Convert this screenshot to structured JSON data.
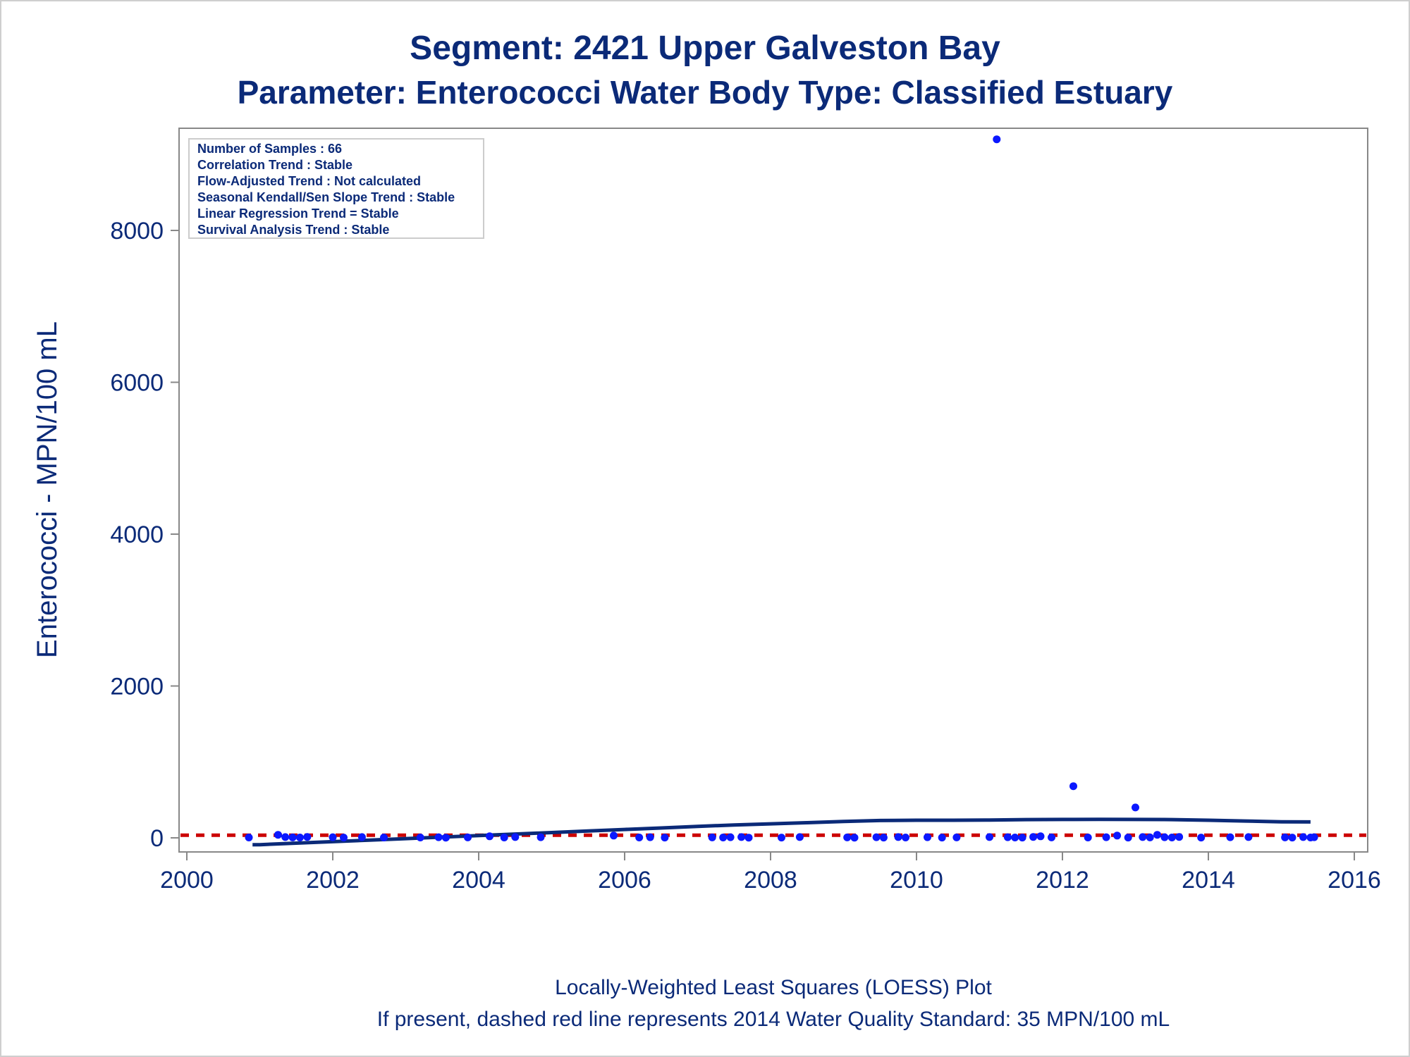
{
  "chart_data": {
    "type": "scatter",
    "title_line1": "Segment: 2421  Upper Galveston Bay",
    "title_line2": "Parameter: Enterococci   Water Body Type: Classified Estuary",
    "xlabel": "",
    "ylabel": "Enterococci - MPN/100 mL",
    "xlim": [
      2000,
      2016
    ],
    "ylim": [
      -200,
      9300
    ],
    "x_ticks": [
      "2000",
      "2002",
      "2004",
      "2006",
      "2008",
      "2010",
      "2012",
      "2014",
      "2016"
    ],
    "y_ticks": [
      "0",
      "2000",
      "4000",
      "6000",
      "8000"
    ],
    "stats_box": [
      "Number of Samples : 66",
      "Correlation Trend : Stable",
      "Flow-Adjusted Trend : Not calculated",
      "Seasonal Kendall/Sen Slope Trend : Stable",
      "Linear Regression Trend = Stable",
      "Survival Analysis Trend : Stable"
    ],
    "standard_value": 35,
    "points": [
      [
        2000.85,
        5
      ],
      [
        2001.25,
        40
      ],
      [
        2001.35,
        10
      ],
      [
        2001.55,
        5
      ],
      [
        2001.65,
        12
      ],
      [
        2002.0,
        8
      ],
      [
        2002.15,
        4
      ],
      [
        2002.4,
        10
      ],
      [
        2003.2,
        5
      ],
      [
        2003.45,
        8
      ],
      [
        2003.55,
        3
      ],
      [
        2003.85,
        6
      ],
      [
        2004.15,
        20
      ],
      [
        2004.35,
        5
      ],
      [
        2004.5,
        10
      ],
      [
        2004.85,
        8
      ],
      [
        2005.85,
        30
      ],
      [
        2006.2,
        5
      ],
      [
        2006.35,
        8
      ],
      [
        2006.55,
        4
      ],
      [
        2007.2,
        6
      ],
      [
        2007.35,
        5
      ],
      [
        2007.45,
        8
      ],
      [
        2007.6,
        10
      ],
      [
        2007.7,
        3
      ],
      [
        2008.15,
        4
      ],
      [
        2008.4,
        10
      ],
      [
        2009.05,
        6
      ],
      [
        2009.15,
        3
      ],
      [
        2009.45,
        8
      ],
      [
        2009.55,
        4
      ],
      [
        2009.75,
        10
      ],
      [
        2009.85,
        5
      ],
      [
        2010.15,
        8
      ],
      [
        2010.35,
        4
      ],
      [
        2010.55,
        6
      ],
      [
        2011.0,
        10
      ],
      [
        2011.1,
        9200
      ],
      [
        2011.25,
        8
      ],
      [
        2011.35,
        5
      ],
      [
        2011.45,
        4
      ],
      [
        2011.6,
        12
      ],
      [
        2011.7,
        20
      ],
      [
        2011.85,
        6
      ],
      [
        2012.15,
        680
      ],
      [
        2012.35,
        5
      ],
      [
        2012.6,
        8
      ],
      [
        2012.75,
        30
      ],
      [
        2012.9,
        4
      ],
      [
        2013.0,
        400
      ],
      [
        2013.1,
        10
      ],
      [
        2013.2,
        6
      ],
      [
        2013.3,
        40
      ],
      [
        2013.4,
        8
      ],
      [
        2013.5,
        5
      ],
      [
        2013.6,
        12
      ],
      [
        2013.9,
        4
      ],
      [
        2014.3,
        8
      ],
      [
        2014.55,
        10
      ],
      [
        2015.05,
        6
      ],
      [
        2015.15,
        4
      ],
      [
        2015.3,
        10
      ],
      [
        2015.4,
        5
      ],
      [
        2015.45,
        8
      ],
      [
        2002.7,
        5
      ],
      [
        2001.45,
        6
      ]
    ],
    "loess": [
      [
        2000.9,
        -90
      ],
      [
        2001.0,
        -90
      ],
      [
        2001.5,
        -70
      ],
      [
        2002.0,
        -50
      ],
      [
        2002.5,
        -30
      ],
      [
        2003.0,
        -10
      ],
      [
        2003.5,
        10
      ],
      [
        2004.0,
        30
      ],
      [
        2004.5,
        50
      ],
      [
        2005.0,
        70
      ],
      [
        2005.5,
        90
      ],
      [
        2006.0,
        110
      ],
      [
        2006.5,
        130
      ],
      [
        2007.0,
        150
      ],
      [
        2007.5,
        170
      ],
      [
        2008.0,
        185
      ],
      [
        2008.5,
        200
      ],
      [
        2009.0,
        215
      ],
      [
        2009.5,
        228
      ],
      [
        2010.0,
        232
      ],
      [
        2010.5,
        232
      ],
      [
        2011.0,
        235
      ],
      [
        2011.5,
        240
      ],
      [
        2012.0,
        242
      ],
      [
        2012.5,
        243
      ],
      [
        2013.0,
        242
      ],
      [
        2013.5,
        240
      ],
      [
        2014.0,
        232
      ],
      [
        2014.5,
        222
      ],
      [
        2015.0,
        212
      ],
      [
        2015.4,
        210
      ]
    ]
  },
  "footer": {
    "line1": "Locally-Weighted Least Squares (LOESS) Plot",
    "line2": "If present, dashed red line represents 2014 Water Quality Standard: 35 MPN/100 mL"
  },
  "colors": {
    "text": "#0b2a78",
    "points": "#0b18ff",
    "loess": "#0b2a78",
    "standard_line": "#cc0000",
    "axes": "#888888"
  }
}
